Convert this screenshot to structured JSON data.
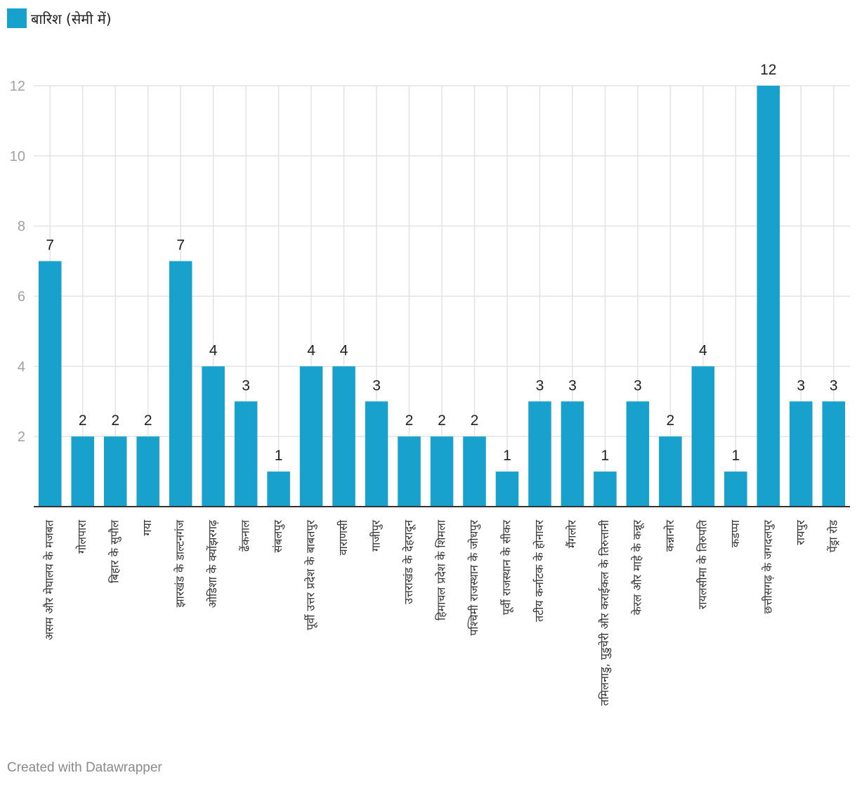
{
  "colors": {
    "bar": "#18a1cd",
    "grid": "#e3e3e3",
    "axis": "#333333",
    "tick": "#a0a0a0",
    "label": "#333333"
  },
  "footer": "Created with Datawrapper",
  "chart_data": {
    "type": "bar",
    "title": "",
    "legend": [
      {
        "name": "बारिश (सेमी में)",
        "color": "#18a1cd"
      }
    ],
    "legend_position": "top-left",
    "xlabel": "",
    "ylabel": "",
    "ylim": [
      0,
      12
    ],
    "yticks": [
      2,
      4,
      6,
      8,
      10,
      12
    ],
    "grid": true,
    "categories": [
      "असम और मेघालय के मजबत",
      "गोलपारा",
      "बिहार के सुपौल",
      "गया",
      "झारखंड के डाल्टनगंज",
      "ओडिशा के क्योंझरगढ़",
      "ढेंकनाल",
      "संबलपुर",
      "पूर्वी उत्तर प्रदेश के बाबतपुर",
      "वाराणसी",
      "गाजीपुर",
      "उत्तराखंड के देहरादून",
      "हिमाचल प्रदेश के शिमला",
      "पश्चिमी राजस्थान के जोधपुर",
      "पूर्वी राजस्थान के सीकर",
      "तटीय कर्नाटक के होनावर",
      "मैंगलोर",
      "तमिलनाडु, पुडुचेरी और कराईकल के तिरुत्तानी",
      "केरल और माहे के कन्नूर",
      "कन्नानोर",
      "रायलसीमा के तिरुपति",
      "कडप्पा",
      "छत्तीसगढ़ के जगदलपुर",
      "रायपुर",
      "पेंड्रा रोड"
    ],
    "series": [
      {
        "name": "बारिश (सेमी में)",
        "values": [
          7,
          2,
          2,
          2,
          7,
          4,
          3,
          1,
          4,
          4,
          3,
          2,
          2,
          2,
          1,
          3,
          3,
          1,
          3,
          2,
          4,
          1,
          12,
          3,
          3
        ]
      }
    ]
  }
}
